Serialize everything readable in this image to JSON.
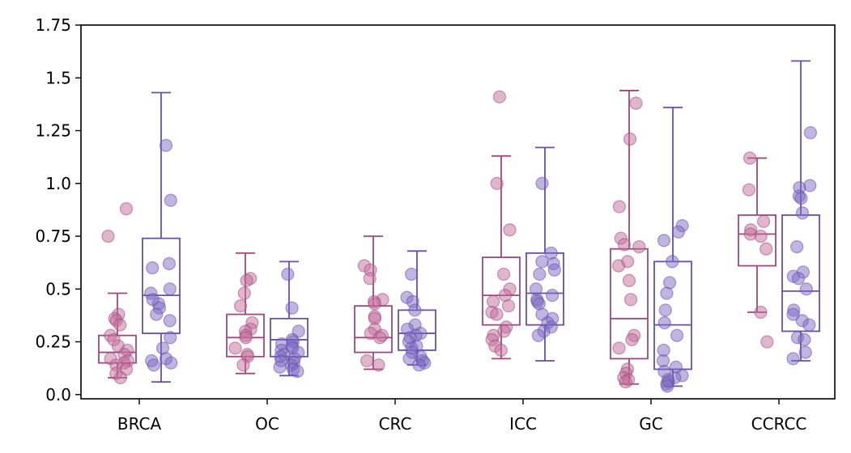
{
  "chart_data": {
    "type": "box",
    "categories": [
      "BRCA",
      "OC",
      "CRC",
      "ICC",
      "GC",
      "CCRCC"
    ],
    "ylim": [
      -0.02,
      1.75
    ],
    "yticks": [
      0.0,
      0.25,
      0.5,
      0.75,
      1.0,
      1.25,
      1.5,
      1.75
    ],
    "ytick_labels": [
      "0.0",
      "0.25",
      "0.5",
      "0.75",
      "1.0",
      "1.25",
      "1.5",
      "1.75"
    ],
    "grid": false,
    "colors": {
      "series_a": "#9c4a7c",
      "series_a_fill": "#c46e9b",
      "series_b": "#6650a8",
      "series_b_fill": "#7e6cc4"
    },
    "series": [
      {
        "boxes": [
          {
            "category": "BRCA",
            "whislo": 0.08,
            "q1": 0.15,
            "med": 0.2,
            "q3": 0.28,
            "whishi": 0.48,
            "points": [
              0.88,
              0.75,
              0.38,
              0.36,
              0.35,
              0.33,
              0.28,
              0.26,
              0.23,
              0.21,
              0.19,
              0.17,
              0.16,
              0.15,
              0.14,
              0.12,
              0.1,
              0.08
            ]
          },
          {
            "category": "OC",
            "whislo": 0.1,
            "q1": 0.18,
            "med": 0.27,
            "q3": 0.38,
            "whishi": 0.67,
            "points": [
              0.55,
              0.54,
              0.48,
              0.42,
              0.34,
              0.31,
              0.3,
              0.28,
              0.27,
              0.22,
              0.19,
              0.18,
              0.14
            ]
          },
          {
            "category": "CRC",
            "whislo": 0.12,
            "q1": 0.2,
            "med": 0.27,
            "q3": 0.42,
            "whishi": 0.75,
            "points": [
              0.61,
              0.59,
              0.55,
              0.45,
              0.44,
              0.43,
              0.37,
              0.36,
              0.31,
              0.29,
              0.28,
              0.27,
              0.16,
              0.14
            ]
          },
          {
            "category": "ICC",
            "whislo": 0.17,
            "q1": 0.33,
            "med": 0.47,
            "q3": 0.65,
            "whishi": 1.13,
            "points": [
              1.41,
              1.0,
              0.78,
              0.57,
              0.5,
              0.47,
              0.44,
              0.42,
              0.39,
              0.38,
              0.32,
              0.3,
              0.28,
              0.26,
              0.23,
              0.21
            ]
          },
          {
            "category": "GC",
            "whislo": 0.05,
            "q1": 0.17,
            "med": 0.36,
            "q3": 0.69,
            "whishi": 1.44,
            "points": [
              1.38,
              1.21,
              0.89,
              0.74,
              0.71,
              0.7,
              0.63,
              0.61,
              0.54,
              0.45,
              0.28,
              0.26,
              0.22,
              0.12,
              0.1,
              0.08,
              0.07,
              0.06
            ]
          },
          {
            "category": "CCRCC",
            "whislo": 0.39,
            "q1": 0.61,
            "med": 0.76,
            "q3": 0.85,
            "whishi": 1.12,
            "points": [
              1.12,
              0.97,
              0.82,
              0.78,
              0.76,
              0.75,
              0.69,
              0.39,
              0.25
            ]
          }
        ]
      },
      {
        "boxes": [
          {
            "category": "BRCA",
            "whislo": 0.06,
            "q1": 0.29,
            "med": 0.47,
            "q3": 0.74,
            "whishi": 1.43,
            "points": [
              1.18,
              0.92,
              0.62,
              0.6,
              0.5,
              0.48,
              0.45,
              0.43,
              0.41,
              0.38,
              0.35,
              0.27,
              0.22,
              0.17,
              0.16,
              0.15,
              0.14
            ]
          },
          {
            "category": "OC",
            "whislo": 0.09,
            "q1": 0.18,
            "med": 0.26,
            "q3": 0.36,
            "whishi": 0.63,
            "points": [
              0.57,
              0.41,
              0.3,
              0.26,
              0.25,
              0.24,
              0.23,
              0.22,
              0.21,
              0.2,
              0.19,
              0.18,
              0.17,
              0.16,
              0.15,
              0.14,
              0.13,
              0.12,
              0.11
            ]
          },
          {
            "category": "CRC",
            "whislo": 0.14,
            "q1": 0.21,
            "med": 0.29,
            "q3": 0.4,
            "whishi": 0.68,
            "points": [
              0.57,
              0.46,
              0.44,
              0.4,
              0.33,
              0.31,
              0.29,
              0.28,
              0.27,
              0.25,
              0.23,
              0.22,
              0.2,
              0.18,
              0.17,
              0.16,
              0.15,
              0.14
            ]
          },
          {
            "category": "ICC",
            "whislo": 0.16,
            "q1": 0.33,
            "med": 0.48,
            "q3": 0.67,
            "whishi": 1.17,
            "points": [
              1.0,
              0.67,
              0.63,
              0.62,
              0.59,
              0.57,
              0.5,
              0.47,
              0.45,
              0.44,
              0.43,
              0.38,
              0.36,
              0.34,
              0.32,
              0.3,
              0.28
            ]
          },
          {
            "category": "GC",
            "whislo": 0.04,
            "q1": 0.12,
            "med": 0.33,
            "q3": 0.63,
            "whishi": 1.36,
            "points": [
              0.8,
              0.77,
              0.73,
              0.63,
              0.53,
              0.48,
              0.4,
              0.34,
              0.28,
              0.21,
              0.16,
              0.13,
              0.11,
              0.09,
              0.08,
              0.07,
              0.06,
              0.05,
              0.04
            ]
          },
          {
            "category": "CCRCC",
            "whislo": 0.16,
            "q1": 0.3,
            "med": 0.49,
            "q3": 0.85,
            "whishi": 1.58,
            "points": [
              1.24,
              0.99,
              0.98,
              0.94,
              0.93,
              0.86,
              0.7,
              0.58,
              0.56,
              0.55,
              0.5,
              0.4,
              0.38,
              0.35,
              0.33,
              0.27,
              0.26,
              0.2,
              0.17
            ]
          }
        ]
      }
    ]
  }
}
